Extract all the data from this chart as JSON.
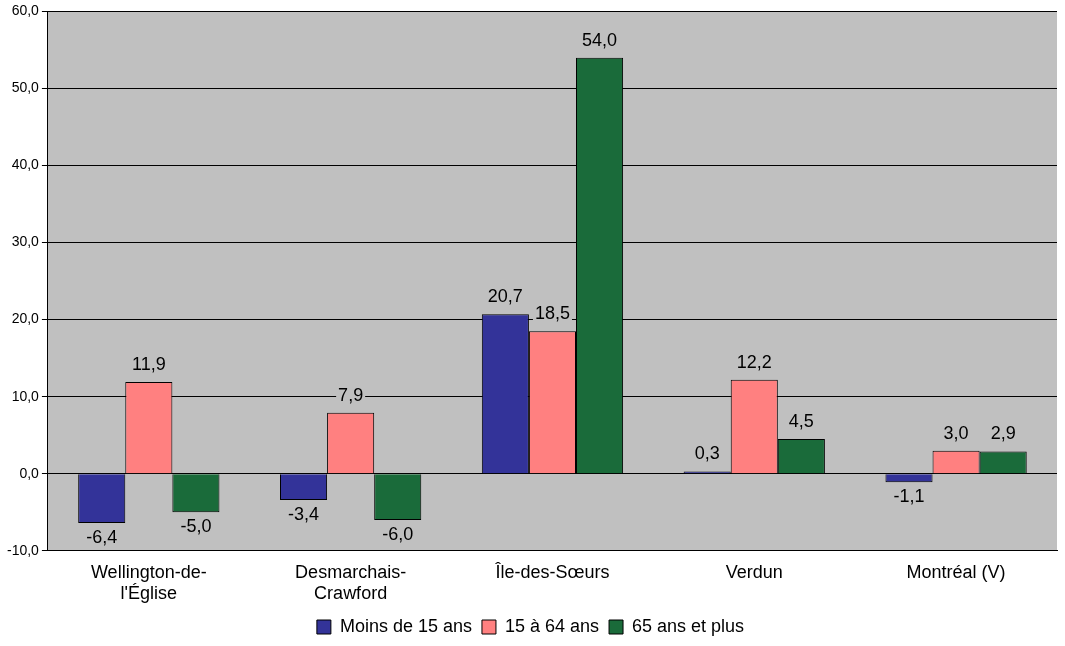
{
  "chart_data": {
    "type": "bar",
    "categories": [
      "Wellington-de-l'Église",
      "Desmarchais-Crawford",
      "Île-des-Sœurs",
      "Verdun",
      "Montréal (V)"
    ],
    "series": [
      {
        "name": "Moins de 15 ans",
        "color": "#333399",
        "values": [
          -6.4,
          -3.4,
          20.7,
          0.3,
          -1.1
        ],
        "value_labels": [
          "-6,4",
          "-3,4",
          "20,7",
          "0,3",
          "-1,1"
        ]
      },
      {
        "name": "15 à 64 ans",
        "color": "#ff8080",
        "values": [
          11.9,
          7.9,
          18.5,
          12.2,
          3.0
        ],
        "value_labels": [
          "11,9",
          "7,9",
          "18,5",
          "12,2",
          "3,0"
        ]
      },
      {
        "name": "65 ans et plus",
        "color": "#1a6b3a",
        "values": [
          -5.0,
          -6.0,
          54.0,
          4.5,
          2.9
        ],
        "value_labels": [
          "-5,0",
          "-6,0",
          "54,0",
          "4,5",
          "2,9"
        ]
      }
    ],
    "ylim": [
      -10,
      60
    ],
    "yticks": [
      {
        "value": -10,
        "label": "-10,0"
      },
      {
        "value": 0,
        "label": "0,0"
      },
      {
        "value": 10,
        "label": "10,0"
      },
      {
        "value": 20,
        "label": "20,0"
      },
      {
        "value": 30,
        "label": "30,0"
      },
      {
        "value": 40,
        "label": "40,0"
      },
      {
        "value": 50,
        "label": "50,0"
      },
      {
        "value": 60,
        "label": "60,0"
      }
    ],
    "grid": "y",
    "legend": "bottom"
  }
}
